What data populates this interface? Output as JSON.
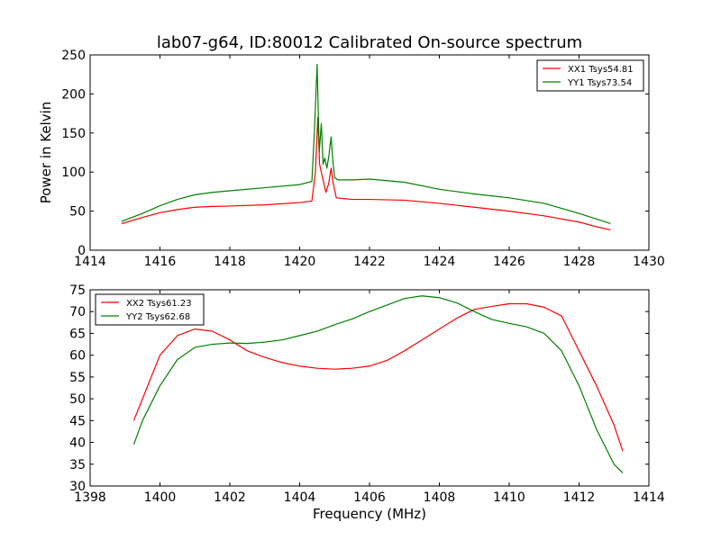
{
  "figure": {
    "title": "lab07-g64, ID:80012 Calibrated On-source spectrum"
  },
  "chart_data": [
    {
      "type": "line",
      "title": "lab07-g64, ID:80012 Calibrated On-source spectrum",
      "xlabel": "",
      "ylabel": "Power in Kelvin",
      "xlim": [
        1414,
        1430
      ],
      "ylim": [
        0,
        250
      ],
      "xticks": [
        1414,
        1416,
        1418,
        1420,
        1422,
        1424,
        1426,
        1428,
        1430
      ],
      "yticks": [
        0,
        50,
        100,
        150,
        200,
        250
      ],
      "xtick_labels": [
        "1414",
        "1416",
        "1418",
        "1420",
        "1422",
        "1424",
        "1426",
        "1428",
        "1430"
      ],
      "ytick_labels": [
        "0",
        "50",
        "100",
        "150",
        "200",
        "250"
      ],
      "legend_position": "top-right",
      "grid": false,
      "series": [
        {
          "name": "XX1 Tsys54.81",
          "color": "#ff0000",
          "x": [
            1414.9,
            1415.5,
            1416,
            1416.5,
            1417,
            1417.5,
            1418,
            1419,
            1420,
            1420.35,
            1420.45,
            1420.52,
            1420.57,
            1420.62,
            1420.68,
            1420.75,
            1420.83,
            1420.9,
            1420.95,
            1421.05,
            1421.5,
            1422,
            1423,
            1424,
            1425,
            1426,
            1427,
            1428,
            1428.5,
            1428.9
          ],
          "y": [
            34,
            42,
            48,
            52,
            55,
            56,
            56.5,
            58,
            61,
            63,
            100,
            170,
            110,
            100,
            88,
            74,
            85,
            105,
            88,
            67,
            65,
            65,
            64,
            60,
            55,
            50,
            44,
            36,
            30,
            26
          ]
        },
        {
          "name": "YY1 Tsys73.54",
          "color": "#008000",
          "x": [
            1414.9,
            1415.5,
            1416,
            1416.5,
            1417,
            1417.5,
            1418,
            1419,
            1420,
            1420.35,
            1420.42,
            1420.5,
            1420.56,
            1420.62,
            1420.67,
            1420.72,
            1420.78,
            1420.84,
            1420.9,
            1420.95,
            1421.0,
            1421.1,
            1421.5,
            1422,
            1423,
            1424,
            1425,
            1426,
            1427,
            1428,
            1428.5,
            1428.9
          ],
          "y": [
            37,
            47,
            57,
            65,
            71,
            74,
            76,
            80,
            84,
            88,
            150,
            238,
            125,
            162,
            110,
            118,
            105,
            122,
            145,
            115,
            93,
            90,
            90,
            91,
            87,
            78,
            72,
            67,
            60,
            47,
            40,
            34
          ]
        }
      ]
    },
    {
      "type": "line",
      "title": "",
      "xlabel": "Frequency (MHz)",
      "ylabel": "",
      "xlim": [
        1398,
        1414
      ],
      "ylim": [
        30,
        75
      ],
      "xticks": [
        1398,
        1400,
        1402,
        1404,
        1406,
        1408,
        1410,
        1412,
        1414
      ],
      "yticks": [
        30,
        35,
        40,
        45,
        50,
        55,
        60,
        65,
        70,
        75
      ],
      "xtick_labels": [
        "1398",
        "1400",
        "1402",
        "1404",
        "1406",
        "1408",
        "1410",
        "1412",
        "1414"
      ],
      "ytick_labels": [
        "30",
        "35",
        "40",
        "45",
        "50",
        "55",
        "60",
        "65",
        "70",
        "75"
      ],
      "legend_position": "top-left",
      "grid": false,
      "series": [
        {
          "name": "XX2 Tsys61.23",
          "color": "#ff0000",
          "x": [
            1399.25,
            1399.5,
            1400,
            1400.5,
            1401,
            1401.5,
            1402,
            1402.5,
            1403,
            1403.5,
            1404,
            1404.5,
            1405,
            1405.5,
            1406,
            1406.5,
            1407,
            1407.5,
            1408,
            1408.5,
            1409,
            1409.5,
            1410,
            1410.5,
            1411,
            1411.5,
            1412,
            1412.5,
            1413,
            1413.25
          ],
          "y": [
            45,
            50,
            60,
            64.5,
            66,
            65.5,
            63.5,
            61,
            59.5,
            58.3,
            57.5,
            57,
            56.8,
            57,
            57.5,
            58.8,
            61,
            63.5,
            66,
            68.5,
            70.5,
            71.2,
            71.8,
            71.8,
            71,
            69,
            61,
            53,
            44,
            38
          ]
        },
        {
          "name": "YY2 Tsys62.68",
          "color": "#008000",
          "x": [
            1399.25,
            1399.5,
            1400,
            1400.5,
            1401,
            1401.5,
            1402,
            1402.5,
            1403,
            1403.5,
            1404,
            1404.5,
            1405,
            1405.5,
            1406,
            1406.5,
            1407,
            1407.5,
            1408,
            1408.5,
            1409,
            1409.5,
            1410,
            1410.5,
            1411,
            1411.5,
            1412,
            1412.5,
            1413,
            1413.25
          ],
          "y": [
            39.5,
            45,
            53,
            59,
            61.8,
            62.5,
            62.8,
            62.7,
            63,
            63.5,
            64.5,
            65.5,
            67,
            68.3,
            70,
            71.5,
            73,
            73.6,
            73.2,
            72,
            70,
            68.2,
            67.3,
            66.5,
            65,
            61,
            53,
            43,
            35,
            33
          ]
        }
      ]
    }
  ]
}
